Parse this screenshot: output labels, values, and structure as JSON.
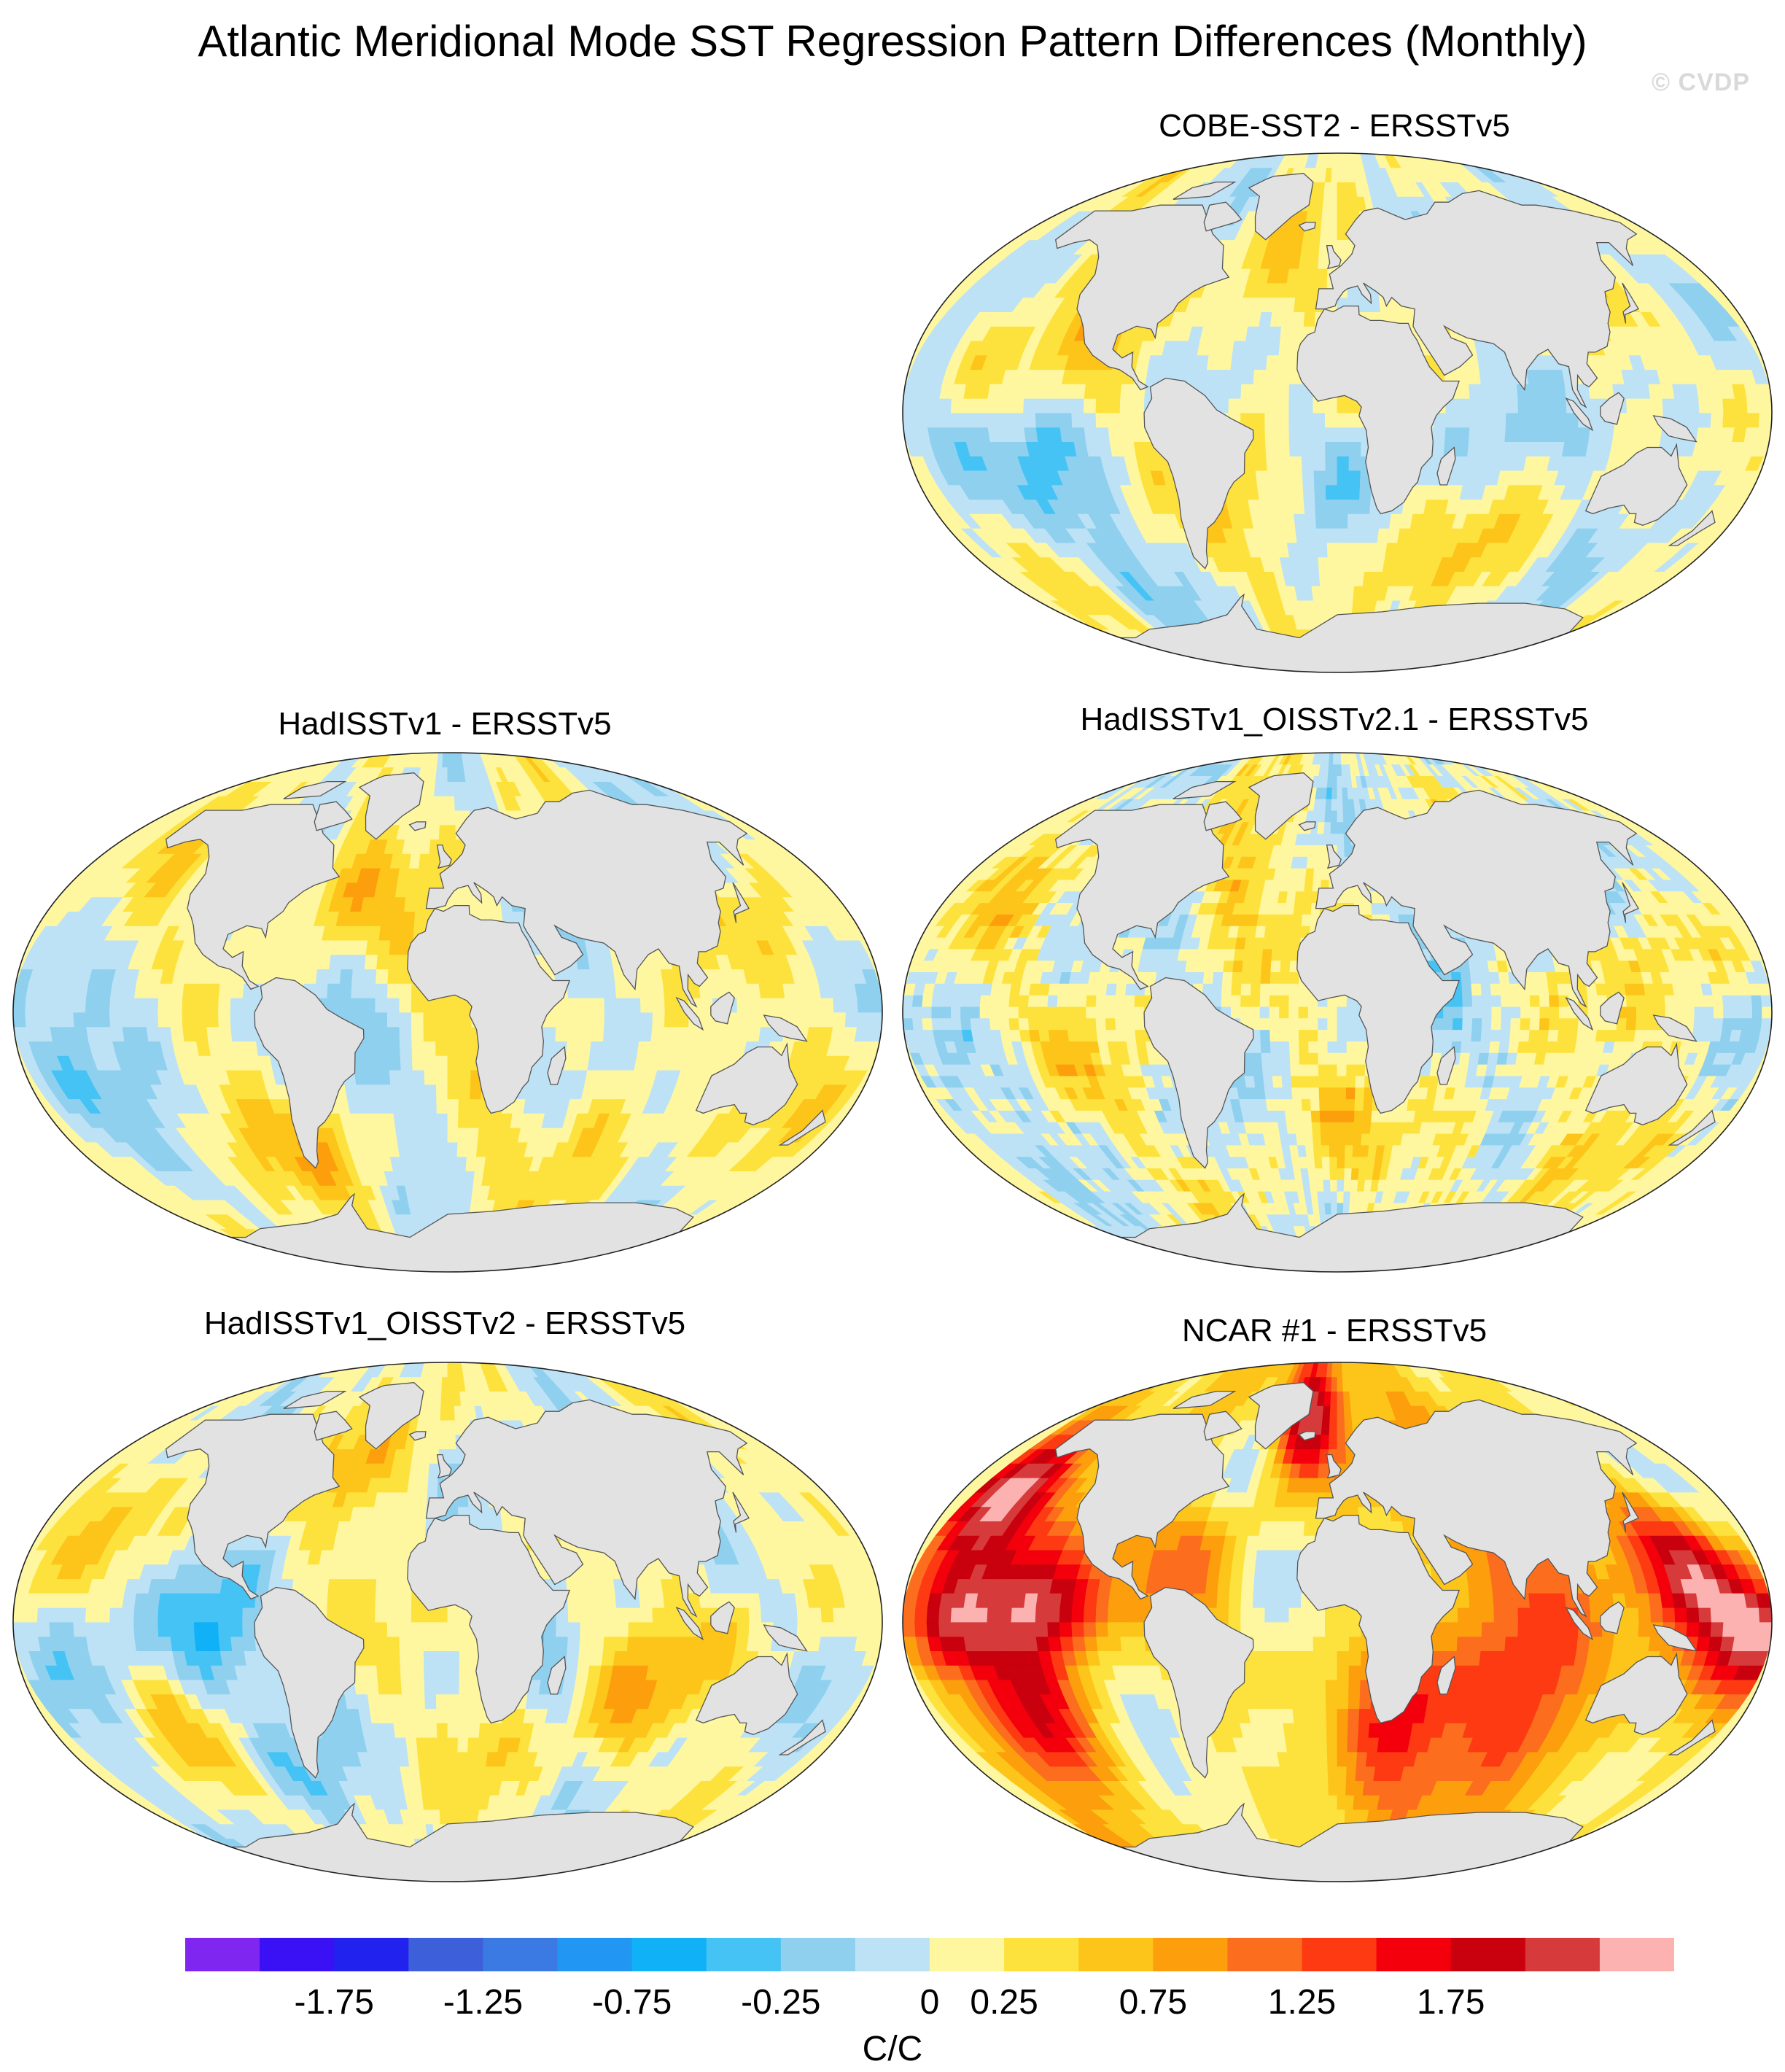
{
  "title": "Atlantic Meridional Mode SST Regression Pattern Differences (Monthly)",
  "watermark": "© CVDP",
  "panels": [
    {
      "id": "p1",
      "title": "COBE-SST2 - ERSSTv5",
      "style": "mild"
    },
    {
      "id": "p2",
      "title": "HadISSTv1 - ERSSTv5",
      "style": "mild"
    },
    {
      "id": "p3",
      "title": "HadISSTv1_OISSTv2.1 - ERSSTv5",
      "style": "speckle"
    },
    {
      "id": "p4",
      "title": "HadISSTv1_OISSTv2 - ERSSTv5",
      "style": "mild"
    },
    {
      "id": "p5",
      "title": "NCAR #1 - ERSSTv5",
      "style": "strong"
    }
  ],
  "colorbar": {
    "colors": [
      "#7f27f0",
      "#3a10f5",
      "#2222ee",
      "#3d5fd9",
      "#3b7ae3",
      "#2196f3",
      "#10b1f7",
      "#46c3f5",
      "#8fd0ef",
      "#bde2f6",
      "#fef7a0",
      "#fde23e",
      "#fdc51a",
      "#fd9f0c",
      "#fc6e1e",
      "#fd3a12",
      "#f3000c",
      "#c9000d",
      "#d63a3a",
      "#fdb2b2"
    ],
    "tick_labels": [
      "-1.75",
      "-1.25",
      "-0.75",
      "-0.25",
      "0",
      "0.25",
      "0.75",
      "1.25",
      "1.75"
    ],
    "tick_boundaries": [
      2,
      4,
      6,
      8,
      10,
      11,
      13,
      15,
      17
    ],
    "units": "C/C"
  },
  "legend_min": -2.0,
  "legend_max": 2.0
}
